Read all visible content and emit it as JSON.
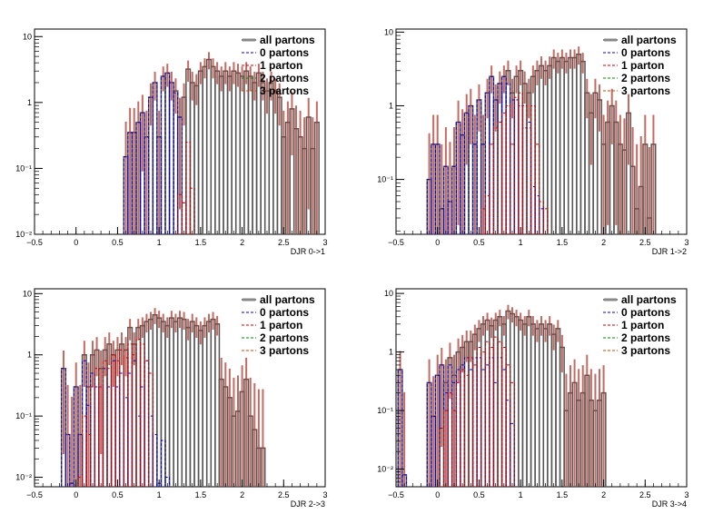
{
  "legend_entries": [
    "all partons",
    "0 partons",
    "1 parton",
    "2 partons",
    "3 partons"
  ],
  "series_colors": {
    "all partons": "#555555",
    "0 partons": "#0000cc",
    "1 parton": "#cc0000",
    "2 partons": "#008800",
    "3 partons": "#cc4400"
  },
  "chart_data": [
    {
      "type": "histogram",
      "xlabel": "DJR 0->1",
      "xlim": [
        -0.5,
        3.0
      ],
      "ylim": [
        0.01,
        13
      ],
      "log_y": true,
      "x_ticks": [
        "−0.5",
        "0",
        "0.5",
        "1",
        "1.5",
        "2",
        "2.5",
        "3"
      ],
      "y_ticks": [
        "10⁻²",
        "10⁻¹",
        "1",
        "10"
      ],
      "legend_position": "top-right",
      "series": [
        {
          "name": "all partons",
          "x": [
            0.6,
            0.65,
            0.7,
            0.75,
            0.8,
            0.85,
            0.9,
            0.95,
            1.0,
            1.05,
            1.1,
            1.15,
            1.2,
            1.25,
            1.3,
            1.35,
            1.4,
            1.45,
            1.5,
            1.55,
            1.6,
            1.65,
            1.7,
            1.75,
            1.8,
            1.85,
            1.9,
            1.95,
            2.0,
            2.05,
            2.1,
            2.15,
            2.2,
            2.25,
            2.3,
            2.35,
            2.4,
            2.45,
            2.5,
            2.55,
            2.6,
            2.65,
            2.7,
            2.75,
            2.8,
            2.85,
            2.9
          ],
          "y": [
            0.15,
            0.35,
            0.35,
            0.5,
            0.7,
            0.3,
            1.2,
            2.0,
            0.3,
            2.5,
            2.8,
            2.0,
            1.5,
            0.6,
            1.2,
            3.2,
            2.0,
            1.8,
            3.0,
            3.5,
            4.5,
            3.5,
            3.0,
            2.5,
            3.0,
            2.5,
            3.0,
            2.8,
            2.5,
            3.0,
            2.5,
            2.0,
            2.8,
            2.0,
            1.5,
            2.0,
            1.5,
            1.2,
            0.3,
            0.5,
            0.8,
            0.4,
            0.3,
            0.2,
            0.6,
            0.2,
            0.5
          ]
        },
        {
          "name": "0 partons",
          "x": [
            0.6,
            0.65,
            0.7,
            0.75,
            0.8,
            0.85,
            0.9,
            0.95,
            1.0,
            1.05,
            1.1,
            1.15,
            1.2,
            1.25,
            1.3
          ],
          "y": [
            0.15,
            0.35,
            0.35,
            0.5,
            0.7,
            0.3,
            1.2,
            2.0,
            0.3,
            2.5,
            2.8,
            2.0,
            1.4,
            0.6,
            0.03
          ]
        },
        {
          "name": "1 parton",
          "x": [
            1.25,
            1.3,
            1.35,
            1.4
          ],
          "y": [
            0.04,
            0.03,
            0.25,
            0.05
          ]
        },
        {
          "name": "2 partons",
          "x": [],
          "y": []
        },
        {
          "name": "3 partons",
          "x": [],
          "y": []
        }
      ]
    },
    {
      "type": "histogram",
      "xlabel": "DJR 1->2",
      "xlim": [
        -0.5,
        3.0
      ],
      "ylim": [
        0.018,
        11
      ],
      "log_y": true,
      "x_ticks": [
        "−0.5",
        "0",
        "0.5",
        "1",
        "1.5",
        "2",
        "2.5",
        "3"
      ],
      "y_ticks": [
        "10⁻¹",
        "1",
        "10"
      ],
      "legend_position": "top-right",
      "series": [
        {
          "name": "all partons",
          "x": [
            -0.1,
            -0.05,
            0.0,
            0.05,
            0.1,
            0.15,
            0.2,
            0.25,
            0.3,
            0.35,
            0.4,
            0.45,
            0.5,
            0.55,
            0.6,
            0.65,
            0.7,
            0.75,
            0.8,
            0.85,
            0.9,
            0.95,
            1.0,
            1.05,
            1.1,
            1.15,
            1.2,
            1.25,
            1.3,
            1.35,
            1.4,
            1.45,
            1.5,
            1.55,
            1.6,
            1.65,
            1.7,
            1.75,
            1.8,
            1.85,
            1.9,
            1.95,
            2.0,
            2.05,
            2.1,
            2.15,
            2.2,
            2.25,
            2.3,
            2.35,
            2.4,
            2.45,
            2.5,
            2.55,
            2.6
          ],
          "y": [
            0.1,
            0.3,
            0.3,
            0.04,
            0.15,
            0.05,
            0.15,
            0.6,
            0.4,
            0.8,
            1.0,
            0.3,
            1.2,
            0.3,
            1.5,
            2.5,
            1.2,
            2.0,
            2.5,
            3.0,
            1.5,
            2.5,
            3.0,
            2.0,
            1.5,
            2.5,
            3.0,
            3.5,
            3.0,
            3.5,
            4.5,
            4.0,
            4.5,
            4.0,
            4.5,
            4.5,
            5.0,
            4.0,
            1.5,
            0.8,
            1.5,
            1.2,
            0.3,
            0.6,
            1.0,
            0.6,
            0.3,
            0.25,
            0.8,
            0.15,
            0.04,
            0.08,
            0.3,
            0.03,
            0.3
          ]
        },
        {
          "name": "0 partons",
          "x": [
            -0.1,
            -0.05,
            0.0,
            0.05,
            0.1,
            0.15,
            0.2,
            0.25,
            0.3,
            0.35,
            0.4,
            0.45,
            0.5,
            0.55,
            0.6,
            0.65,
            0.7,
            0.75,
            0.8,
            0.85,
            0.9,
            0.95,
            1.0,
            1.05,
            1.1,
            1.15,
            1.2,
            1.25
          ],
          "y": [
            0.1,
            0.3,
            0.3,
            0.04,
            0.15,
            0.05,
            0.15,
            0.6,
            0.4,
            0.8,
            1.0,
            0.3,
            1.2,
            0.3,
            1.5,
            2.5,
            1.2,
            2.0,
            2.5,
            2.0,
            1.2,
            1.2,
            1.0,
            0.5,
            0.6,
            0.08,
            0.06,
            0.04
          ]
        },
        {
          "name": "1 parton",
          "x": [
            0.55,
            0.6,
            0.65,
            0.7,
            0.75,
            0.8,
            0.85,
            0.9,
            0.95,
            1.0,
            1.05,
            1.1,
            1.15,
            1.2,
            1.25,
            1.3
          ],
          "y": [
            0.04,
            0.06,
            0.3,
            0.5,
            0.6,
            0.8,
            1.0,
            0.3,
            1.3,
            1.5,
            1.0,
            0.5,
            1.0,
            0.3,
            0.05,
            0.04
          ]
        },
        {
          "name": "2 partons",
          "x": [],
          "y": []
        },
        {
          "name": "3 partons",
          "x": [],
          "y": []
        }
      ]
    },
    {
      "type": "histogram",
      "xlabel": "DJR 2->3",
      "xlim": [
        -0.5,
        3.0
      ],
      "ylim": [
        0.007,
        12
      ],
      "log_y": true,
      "x_ticks": [
        "−0.5",
        "0",
        "0.5",
        "1",
        "1.5",
        "2",
        "2.5",
        "3"
      ],
      "y_ticks": [
        "10⁻²",
        "10⁻¹",
        "1",
        "10"
      ],
      "legend_position": "top-right",
      "series": [
        {
          "name": "all partons",
          "x": [
            -0.15,
            -0.1,
            -0.05,
            0.0,
            0.05,
            0.1,
            0.15,
            0.2,
            0.25,
            0.3,
            0.35,
            0.4,
            0.45,
            0.5,
            0.55,
            0.6,
            0.65,
            0.7,
            0.75,
            0.8,
            0.85,
            0.9,
            0.95,
            1.0,
            1.05,
            1.1,
            1.15,
            1.2,
            1.25,
            1.3,
            1.35,
            1.4,
            1.45,
            1.5,
            1.55,
            1.6,
            1.65,
            1.7,
            1.75,
            1.8,
            1.85,
            1.9,
            1.95,
            2.0,
            2.05,
            2.1,
            2.15,
            2.2,
            2.25
          ],
          "y": [
            0.6,
            0.05,
            0.008,
            0.3,
            0.05,
            1.0,
            0.3,
            1.0,
            1.2,
            0.6,
            1.2,
            1.5,
            1.0,
            1.2,
            1.5,
            1.2,
            2.8,
            1.5,
            2.8,
            3.0,
            3.5,
            3.8,
            4.5,
            4.0,
            3.5,
            3.0,
            4.0,
            3.5,
            4.0,
            3.8,
            2.8,
            3.5,
            3.0,
            2.5,
            3.0,
            3.5,
            3.8,
            3.2,
            0.4,
            0.3,
            0.2,
            0.1,
            0.12,
            0.25,
            0.4,
            0.1,
            0.06,
            0.03,
            0.03
          ]
        },
        {
          "name": "0 partons",
          "x": [
            -0.15,
            -0.1,
            -0.05,
            0.0,
            0.05,
            0.1,
            0.15,
            0.2,
            0.25,
            0.3,
            0.35,
            0.4,
            0.45,
            0.5,
            0.55,
            0.6,
            0.65,
            0.7,
            0.75,
            0.8,
            0.85,
            0.9,
            0.95,
            1.0,
            1.05,
            1.1
          ],
          "y": [
            0.6,
            0.05,
            0.008,
            0.3,
            0.05,
            0.8,
            0.15,
            0.5,
            0.3,
            0.3,
            0.6,
            0.3,
            0.8,
            0.3,
            0.5,
            0.2,
            0.5,
            0.8,
            0.1,
            0.3,
            0.8,
            0.1,
            0.05,
            0.008,
            0.04,
            0.01
          ]
        },
        {
          "name": "1 parton",
          "x": [
            0.05,
            0.1,
            0.15,
            0.2,
            0.25,
            0.3,
            0.35,
            0.4,
            0.45,
            0.5,
            0.55,
            0.6,
            0.65,
            0.7,
            0.75,
            0.8,
            0.85,
            0.9
          ],
          "y": [
            0.01,
            0.1,
            0.05,
            0.3,
            0.6,
            0.3,
            0.8,
            0.6,
            1.0,
            0.8,
            1.2,
            0.9,
            1.5,
            1.0,
            1.8,
            1.5,
            0.8,
            0.5
          ]
        },
        {
          "name": "2 partons",
          "x": [],
          "y": []
        },
        {
          "name": "3 partons",
          "x": [],
          "y": []
        }
      ]
    },
    {
      "type": "histogram",
      "xlabel": "DJR 3->4",
      "xlim": [
        -0.5,
        3.0
      ],
      "ylim": [
        0.005,
        12
      ],
      "log_y": true,
      "x_ticks": [
        "−0.5",
        "0",
        "0.5",
        "1",
        "1.5",
        "2",
        "2.5",
        "3"
      ],
      "y_ticks": [
        "10⁻²",
        "10⁻¹",
        "1",
        "10"
      ],
      "legend_position": "top-right",
      "series": [
        {
          "name": "all partons",
          "x": [
            -0.45,
            -0.4,
            -0.1,
            -0.05,
            0.0,
            0.05,
            0.1,
            0.15,
            0.2,
            0.25,
            0.3,
            0.35,
            0.4,
            0.45,
            0.5,
            0.55,
            0.6,
            0.65,
            0.7,
            0.75,
            0.8,
            0.85,
            0.9,
            0.95,
            1.0,
            1.05,
            1.1,
            1.15,
            1.2,
            1.25,
            1.3,
            1.35,
            1.4,
            1.45,
            1.5,
            1.55,
            1.6,
            1.65,
            1.7,
            1.75,
            1.8,
            1.85,
            1.9,
            1.95,
            2.0
          ],
          "y": [
            0.5,
            0.008,
            0.3,
            0.08,
            0.4,
            0.6,
            0.3,
            0.8,
            0.4,
            1.0,
            1.2,
            1.5,
            1.5,
            2.0,
            2.5,
            3.0,
            3.5,
            2.8,
            3.5,
            4.0,
            3.0,
            5.0,
            4.5,
            4.0,
            3.5,
            3.0,
            4.0,
            3.0,
            2.5,
            3.0,
            2.5,
            3.0,
            2.0,
            2.5,
            1.2,
            0.1,
            0.2,
            0.3,
            0.15,
            0.2,
            0.4,
            0.15,
            0.1,
            0.15,
            0.2
          ]
        },
        {
          "name": "0 partons",
          "x": [
            -0.45,
            -0.4,
            -0.1,
            -0.05,
            0.0,
            0.05,
            0.1,
            0.15,
            0.2,
            0.25,
            0.3,
            0.35,
            0.4,
            0.45,
            0.5,
            0.55,
            0.6,
            0.65,
            0.7,
            0.75,
            0.8,
            0.85,
            0.9
          ],
          "y": [
            0.5,
            0.008,
            0.3,
            0.08,
            0.4,
            0.6,
            0.2,
            0.6,
            0.3,
            0.5,
            0.6,
            0.8,
            0.5,
            0.8,
            0.8,
            0.5,
            0.6,
            0.8,
            0.3,
            0.8,
            0.5,
            0.15,
            0.06
          ]
        },
        {
          "name": "1 parton",
          "x": [
            0.05,
            0.1,
            0.15,
            0.2,
            0.25,
            0.3,
            0.35,
            0.4,
            0.45,
            0.5,
            0.55,
            0.6,
            0.65,
            0.7,
            0.75,
            0.8,
            0.85,
            0.9
          ],
          "y": [
            0.05,
            0.1,
            0.2,
            0.1,
            0.3,
            0.5,
            0.4,
            0.8,
            0.6,
            1.2,
            1.0,
            1.5,
            1.2,
            1.8,
            1.5,
            1.2,
            0.6,
            0.3
          ]
        },
        {
          "name": "2 partons",
          "x": [],
          "y": []
        },
        {
          "name": "3 partons",
          "x": [],
          "y": []
        }
      ]
    }
  ]
}
